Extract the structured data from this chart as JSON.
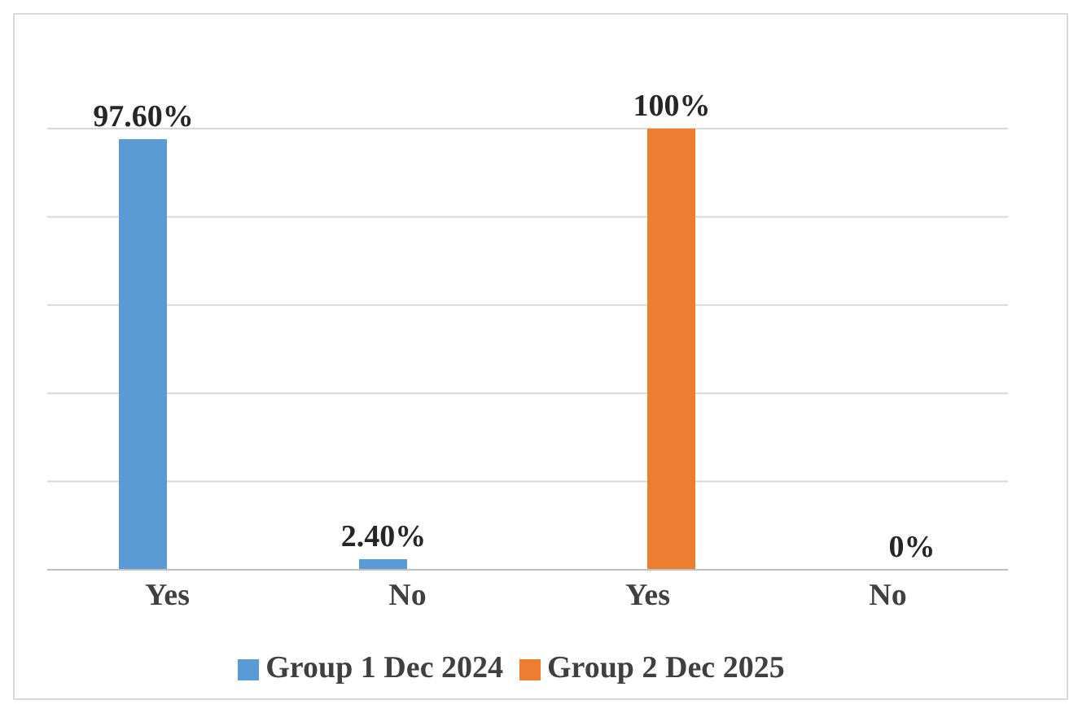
{
  "chart_data": {
    "type": "bar",
    "categories": [
      "Yes",
      "No",
      "Yes",
      "No"
    ],
    "series": [
      {
        "name": "Group 1 Dec 2024",
        "color": "#5b9bd5",
        "values": [
          97.6,
          2.4,
          null,
          null
        ],
        "value_labels": [
          "97.60%",
          "2.40%",
          null,
          null
        ]
      },
      {
        "name": "Group 2 Dec 2025",
        "color": "#ed7d31",
        "values": [
          null,
          null,
          100,
          0
        ],
        "value_labels": [
          null,
          null,
          "100%",
          "0%"
        ]
      }
    ],
    "ylim": [
      0,
      100
    ],
    "tick_labels": "x",
    "grid": "y",
    "legend": "bottom"
  }
}
